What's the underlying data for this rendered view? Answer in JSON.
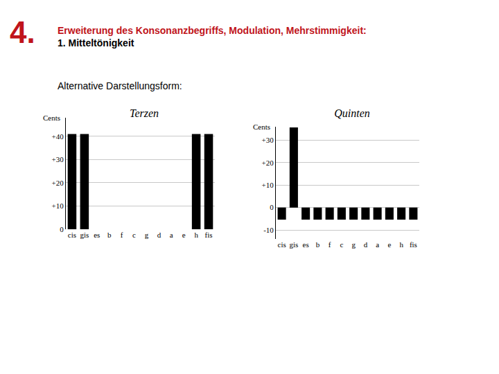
{
  "header": {
    "number": "4.",
    "title": "Erweiterung des Konsonanzbegriffs, Modulation, Mehrstimmigkeit:",
    "subtitle": "1. Mitteltönigkeit",
    "text": "Alternative Darstellungsform:"
  },
  "chart_data": [
    {
      "type": "bar",
      "title": "Terzen",
      "y_label": "Cents",
      "categories": [
        "cis",
        "gis",
        "es",
        "b",
        "f",
        "c",
        "g",
        "d",
        "a",
        "e",
        "h",
        "fis"
      ],
      "values": [
        41,
        41,
        0,
        0,
        0,
        0,
        0,
        0,
        0,
        0,
        41,
        41
      ],
      "color": "#000000",
      "ylim": [
        0,
        48
      ],
      "yticks": [
        0,
        {
          "value": 10,
          "label": "+10"
        },
        {
          "value": 20,
          "label": "+20"
        },
        {
          "value": 30,
          "label": "+30"
        },
        {
          "value": 40,
          "label": "+40"
        }
      ],
      "grid": true
    },
    {
      "type": "bar",
      "title": "Quinten",
      "y_label": "Cents",
      "categories": [
        "cis",
        "gis",
        "es",
        "b",
        "f",
        "c",
        "g",
        "d",
        "a",
        "e",
        "h",
        "fis"
      ],
      "values": [
        -5.4,
        35.7,
        -5.4,
        -5.4,
        -5.4,
        -5.4,
        -5.4,
        -5.4,
        -5.4,
        -5.4,
        -5.4,
        -5.4
      ],
      "color": "#000000",
      "ylim": [
        -14,
        36
      ],
      "yticks": [
        -10,
        0,
        {
          "value": 10,
          "label": "+10"
        },
        {
          "value": 20,
          "label": "+20"
        },
        {
          "value": 30,
          "label": "+30"
        }
      ],
      "grid": true
    }
  ]
}
